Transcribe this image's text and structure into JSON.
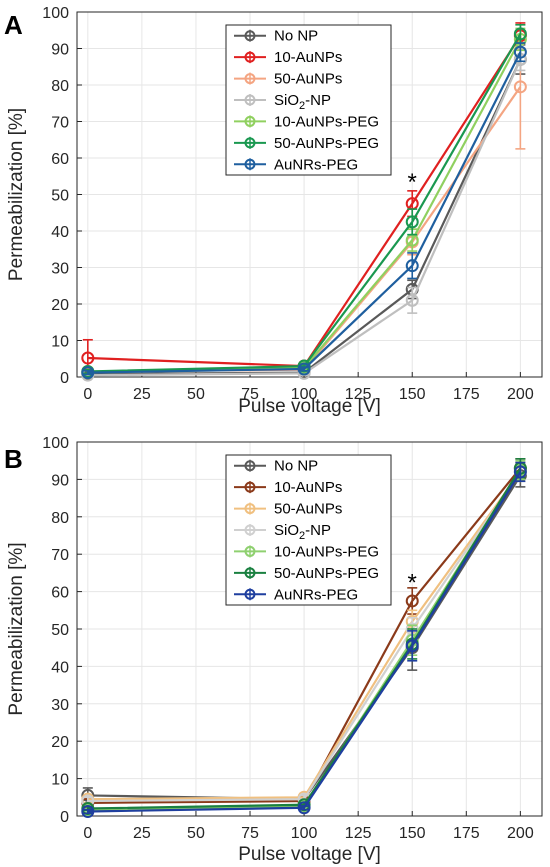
{
  "chart_data": [
    {
      "type": "line",
      "panel_label": "A",
      "xlabel": "Pulse voltage [V]",
      "ylabel": "Permeabilization [%]",
      "xlim": [
        -5,
        210
      ],
      "ylim": [
        0,
        100
      ],
      "xticks": [
        0,
        25,
        50,
        75,
        100,
        125,
        150,
        175,
        200
      ],
      "yticks": [
        0,
        10,
        20,
        30,
        40,
        50,
        60,
        70,
        80,
        90,
        100
      ],
      "grid": true,
      "legend_position": "top-center",
      "annotations": [
        {
          "text": "*",
          "x": 150,
          "y": 54
        }
      ],
      "x": [
        0,
        100,
        150,
        200
      ],
      "series": [
        {
          "name": "No NP",
          "color": "#595959",
          "values": [
            0.8,
            1.2,
            24,
            87
          ],
          "errors": [
            0.5,
            0.5,
            2.5,
            4
          ]
        },
        {
          "name": "10-AuNPs",
          "color": "#e02020",
          "values": [
            5.2,
            3,
            47.5,
            93.5
          ],
          "errors": [
            5,
            1,
            3.5,
            3.5
          ]
        },
        {
          "name": "50-AuNPs",
          "color": "#f4a582",
          "values": [
            1.5,
            2,
            37,
            79.5
          ],
          "errors": [
            0.5,
            0.5,
            3.5,
            17
          ]
        },
        {
          "name": "SiO2-NP",
          "color": "#bfbfbf",
          "values": [
            0.5,
            1,
            21,
            87
          ],
          "errors": [
            0.3,
            0.5,
            3.5,
            3
          ]
        },
        {
          "name": "10-AuNPs-PEG",
          "color": "#90d060",
          "values": [
            1.2,
            2.5,
            37.5,
            92.5
          ],
          "errors": [
            0.5,
            0.5,
            3,
            3
          ]
        },
        {
          "name": "50-AuNPs-PEG",
          "color": "#1a9850",
          "values": [
            1.5,
            3,
            42.5,
            94
          ],
          "errors": [
            0.5,
            0.5,
            3.5,
            2.5
          ]
        },
        {
          "name": "AuNRs-PEG",
          "color": "#1f5f9f",
          "values": [
            1.2,
            2.2,
            30.5,
            89
          ],
          "errors": [
            0.5,
            0.5,
            3.5,
            2.5
          ]
        }
      ]
    },
    {
      "type": "line",
      "panel_label": "B",
      "xlabel": "Pulse voltage [V]",
      "ylabel": "Permeabilization [%]",
      "xlim": [
        -5,
        210
      ],
      "ylim": [
        0,
        100
      ],
      "xticks": [
        0,
        25,
        50,
        75,
        100,
        125,
        150,
        175,
        200
      ],
      "yticks": [
        0,
        10,
        20,
        30,
        40,
        50,
        60,
        70,
        80,
        90,
        100
      ],
      "grid": true,
      "legend_position": "top-center",
      "annotations": [
        {
          "text": "*",
          "x": 150,
          "y": 63
        }
      ],
      "x": [
        0,
        100,
        150,
        200
      ],
      "series": [
        {
          "name": "No NP",
          "color": "#595959",
          "values": [
            5.5,
            4.5,
            45,
            91
          ],
          "errors": [
            2,
            1,
            6,
            3
          ]
        },
        {
          "name": "10-AuNPs",
          "color": "#8b3a1a",
          "values": [
            3.5,
            4,
            57.5,
            93
          ],
          "errors": [
            1,
            1,
            3.5,
            2.5
          ]
        },
        {
          "name": "50-AuNPs",
          "color": "#f0c080",
          "values": [
            4.5,
            5,
            52,
            92
          ],
          "errors": [
            1,
            1,
            3,
            2.5
          ]
        },
        {
          "name": "SiO2-NP",
          "color": "#d0d0d0",
          "values": [
            4,
            4.5,
            50,
            92
          ],
          "errors": [
            1,
            1,
            3,
            2.5
          ]
        },
        {
          "name": "10-AuNPs-PEG",
          "color": "#8fd070",
          "values": [
            1.5,
            2.5,
            47,
            92.5
          ],
          "errors": [
            0.5,
            0.5,
            4,
            2.5
          ]
        },
        {
          "name": "50-AuNPs-PEG",
          "color": "#1a8040",
          "values": [
            2,
            3,
            46,
            93
          ],
          "errors": [
            0.5,
            0.5,
            4,
            2.5
          ]
        },
        {
          "name": "AuNRs-PEG",
          "color": "#1f3f9f",
          "values": [
            1.2,
            2.2,
            45.5,
            92
          ],
          "errors": [
            0.5,
            0.5,
            4,
            2.5
          ]
        }
      ]
    }
  ]
}
